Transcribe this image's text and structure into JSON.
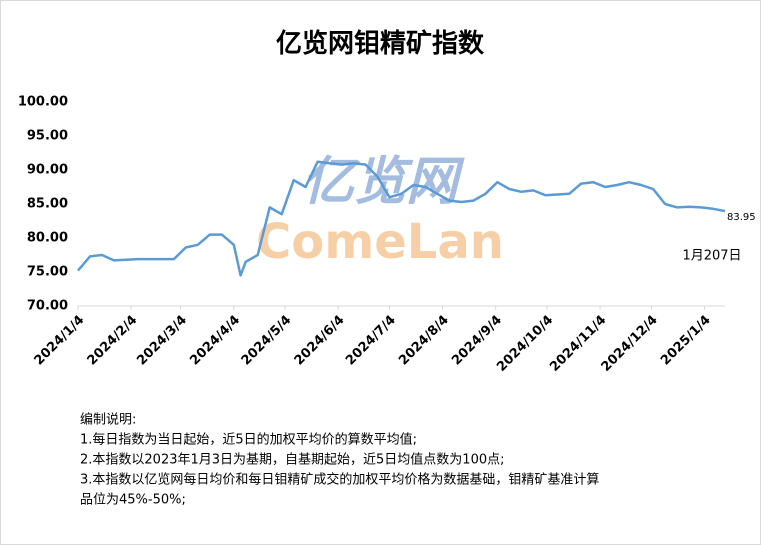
{
  "chart_data": {
    "type": "line",
    "title": "亿览网钼精矿指数",
    "x": [
      "2024/1/4",
      "2024/1/11",
      "2024/1/18",
      "2024/1/25",
      "2024/2/1",
      "2024/2/8",
      "2024/2/15",
      "2024/2/22",
      "2024/2/29",
      "2024/3/7",
      "2024/3/14",
      "2024/3/21",
      "2024/3/28",
      "2024/4/4",
      "2024/4/8",
      "2024/4/11",
      "2024/4/18",
      "2024/4/25",
      "2024/5/2",
      "2024/5/9",
      "2024/5/16",
      "2024/5/23",
      "2024/5/30",
      "2024/6/6",
      "2024/6/13",
      "2024/6/20",
      "2024/6/27",
      "2024/7/4",
      "2024/7/11",
      "2024/7/18",
      "2024/7/25",
      "2024/8/1",
      "2024/8/8",
      "2024/8/15",
      "2024/8/22",
      "2024/8/29",
      "2024/9/5",
      "2024/9/12",
      "2024/9/19",
      "2024/9/26",
      "2024/10/3",
      "2024/10/10",
      "2024/10/17",
      "2024/10/24",
      "2024/10/31",
      "2024/11/7",
      "2024/11/14",
      "2024/11/21",
      "2024/11/28",
      "2024/12/5",
      "2024/12/12",
      "2024/12/19",
      "2024/12/26",
      "2025/1/2",
      "2025/1/9",
      "2025/1/16"
    ],
    "series": [
      {
        "name": "亿览网钼精矿指数",
        "color": "#5b9bd5",
        "values": [
          75.2,
          77.3,
          77.5,
          76.7,
          76.8,
          76.9,
          76.9,
          76.9,
          76.9,
          78.6,
          79.0,
          80.5,
          80.5,
          79.0,
          74.5,
          76.5,
          77.5,
          84.5,
          83.5,
          88.5,
          87.5,
          91.2,
          91.0,
          90.8,
          91.0,
          90.8,
          89.0,
          86.0,
          86.5,
          87.8,
          87.5,
          86.5,
          85.5,
          85.3,
          85.5,
          86.5,
          88.2,
          87.2,
          86.8,
          87.0,
          86.3,
          86.4,
          86.5,
          88.0,
          88.2,
          87.5,
          87.8,
          88.2,
          87.8,
          87.2,
          85.0,
          84.5,
          84.6,
          84.5,
          84.3,
          83.95
        ]
      }
    ],
    "xlim": [
      "2024/1/4",
      "2025/1/16"
    ],
    "xticks": [
      "2024/1/4",
      "2024/2/4",
      "2024/3/4",
      "2024/4/4",
      "2024/5/4",
      "2024/6/4",
      "2024/7/4",
      "2024/8/4",
      "2024/9/4",
      "2024/10/4",
      "2024/11/4",
      "2024/12/4",
      "2025/1/4"
    ],
    "ylim": [
      70,
      100
    ],
    "yticks": [
      {
        "value": 70,
        "label": "70.00"
      },
      {
        "value": 75,
        "label": "75.00"
      },
      {
        "value": 80,
        "label": "80.00"
      },
      {
        "value": 85,
        "label": "85.00"
      },
      {
        "value": 90,
        "label": "90.00"
      },
      {
        "value": 95,
        "label": "95.00"
      },
      {
        "value": 100,
        "label": "100.00"
      }
    ],
    "grid": false,
    "annotation": "1月207日",
    "watermark": [
      "亿览网",
      "ComeLan"
    ],
    "notes": [
      "编制说明:",
      "1.每日指数为当日起始，近5日的加权平均价的算数平均值;",
      "2.本指数以2023年1月3日为基期，自基期起始，近5日均值点数为100点;",
      "3.本指数以亿览网每日均价和每日钼精矿成交的加权平均价格为数据基础，钼精矿基准计算",
      "品位为45%-50%;"
    ]
  }
}
